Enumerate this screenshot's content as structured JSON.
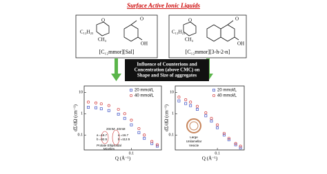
{
  "title": "Surface Active Ionic Liquids",
  "structures": [
    {
      "chain": "C₁₂H₂₅",
      "methyl": "CH₃",
      "ring_o": "O",
      "anion_o": "O",
      "oh": "OH",
      "label": "[C₁₂mmor][Sal]"
    },
    {
      "chain": "C₁₂H₂₅",
      "methyl": "CH₃",
      "ring_o": "O",
      "anion_o": "O",
      "oh": "OH",
      "label": "[C₁₂mmor][3-h-2-n]"
    }
  ],
  "center_box": [
    "Influence of Counterions and",
    "Concentration (above CMC) on",
    "Shape and Size of aggregates"
  ],
  "chart_data": [
    {
      "type": "scatter",
      "xlabel": "Q (Å⁻¹)",
      "ylabel": "dΣ/dΩ (cm⁻¹)",
      "log_x": true,
      "log_y": true,
      "x": [
        0.01,
        0.015,
        0.02,
        0.03,
        0.05,
        0.07,
        0.1,
        0.15,
        0.2,
        0.3,
        0.4
      ],
      "series": [
        {
          "name": "20 mmol/L",
          "color": "#3a4fc4",
          "marker": "square",
          "values": [
            2.0,
            1.9,
            1.7,
            1.4,
            0.95,
            0.6,
            0.3,
            0.13,
            0.07,
            0.04,
            0.03
          ]
        },
        {
          "name": "40 mmol/L",
          "color": "#d23a3a",
          "marker": "circle",
          "values": [
            3.5,
            3.2,
            2.9,
            2.4,
            1.6,
            1.0,
            0.5,
            0.2,
            0.1,
            0.05,
            0.035
          ]
        }
      ],
      "xlim": [
        0.008,
        0.5
      ],
      "xticks": [
        0.1
      ],
      "ylim": [
        0.02,
        20
      ],
      "yticks": [
        0.1,
        1,
        10
      ],
      "annotations": [
        "20mM",
        "40mM",
        "a =16.7",
        "b =92.5",
        "a =16.7",
        "b =112.5",
        "Prolate Ellipsoidal",
        "Micelles"
      ]
    },
    {
      "type": "scatter",
      "xlabel": "Q (Å⁻¹)",
      "ylabel": "dΣ/dΩ (cm⁻¹)",
      "log_x": true,
      "log_y": true,
      "x": [
        0.01,
        0.015,
        0.02,
        0.03,
        0.05,
        0.07,
        0.1,
        0.15,
        0.2,
        0.3,
        0.4
      ],
      "series": [
        {
          "name": "20 mmol/L",
          "color": "#3a4fc4",
          "marker": "square",
          "values": [
            4,
            3,
            2.4,
            1.6,
            0.8,
            0.45,
            0.22,
            0.1,
            0.06,
            0.035,
            0.025
          ]
        },
        {
          "name": "40 mmol/L",
          "color": "#d23a3a",
          "marker": "circle",
          "values": [
            6,
            4.5,
            3.5,
            2.2,
            1.1,
            0.6,
            0.3,
            0.12,
            0.07,
            0.04,
            0.03
          ]
        }
      ],
      "xlim": [
        0.008,
        0.5
      ],
      "xticks": [
        0.1
      ],
      "ylim": [
        0.02,
        20
      ],
      "yticks": [
        0.1,
        1,
        10
      ],
      "annotations": [
        "Large",
        "Unilamellar",
        "Vesicle"
      ]
    }
  ]
}
